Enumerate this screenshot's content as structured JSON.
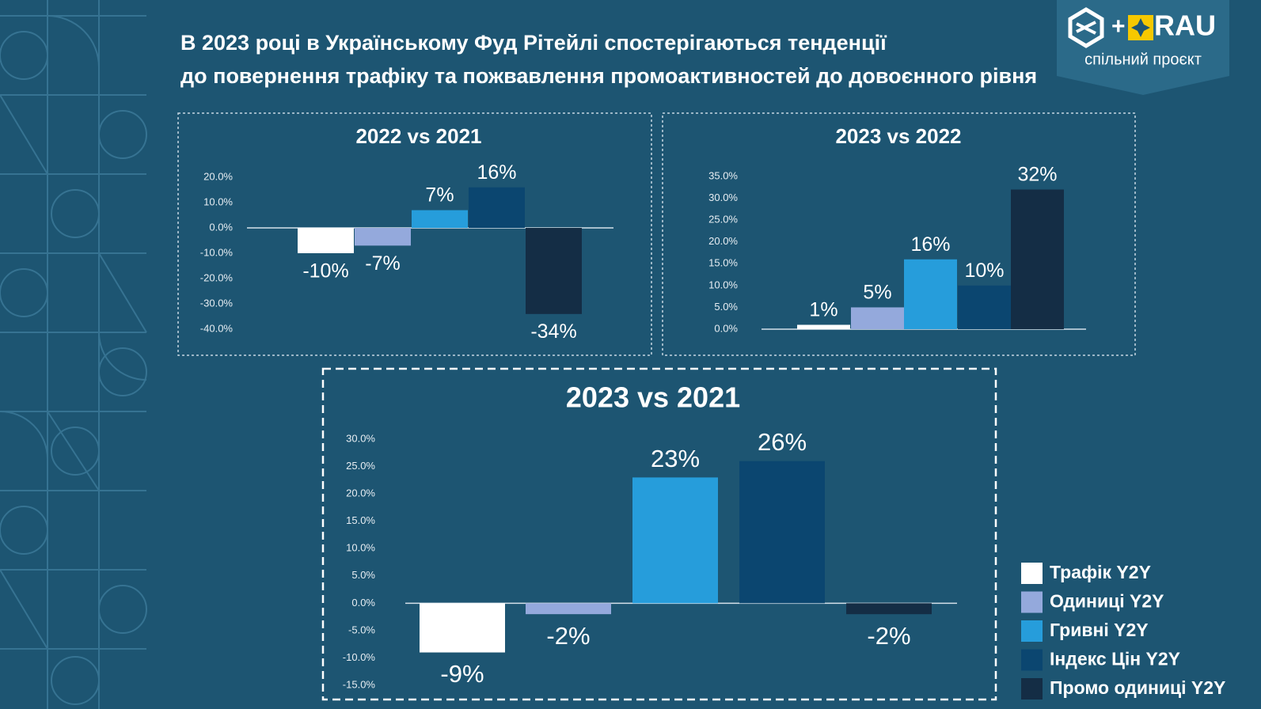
{
  "header": {
    "title_lines": [
      "В 2023 році в Українському Фуд Рітейлі спостерігаються тенденції",
      "до повернення трафіку та пожвавлення промоактивностей до довоєнного рівня"
    ]
  },
  "logo": {
    "plus": "+",
    "brand": "RAU",
    "caption": "спільний проєкт"
  },
  "legend": {
    "items": [
      {
        "name": "Трафік Y2Y",
        "color": "#ffffff"
      },
      {
        "name": "Одиниці Y2Y",
        "color": "#94a9dc"
      },
      {
        "name": "Гривні Y2Y",
        "color": "#269ddb"
      },
      {
        "name": "Індекс Цін Y2Y",
        "color": "#0b4670"
      },
      {
        "name": "Промо одиниці Y2Y",
        "color": "#142d45"
      }
    ]
  },
  "chart_data": [
    {
      "type": "bar",
      "title": "2022 vs 2021",
      "values": [
        -10,
        -7,
        7,
        16,
        -34
      ],
      "value_labels": [
        "-10%",
        "-7%",
        "7%",
        "16%",
        "-34%"
      ],
      "ylim": [
        -40,
        20
      ],
      "yticks": [
        {
          "value": 20,
          "label": "20.0%"
        },
        {
          "value": 10,
          "label": "10.0%"
        },
        {
          "value": 0,
          "label": "0.0%"
        },
        {
          "value": -10,
          "label": "-10.0%"
        },
        {
          "value": -20,
          "label": "-20.0%"
        },
        {
          "value": -30,
          "label": "-30.0%"
        },
        {
          "value": -40,
          "label": "-40.0%"
        }
      ]
    },
    {
      "type": "bar",
      "title": "2023 vs 2022",
      "values": [
        1,
        5,
        16,
        10,
        32
      ],
      "value_labels": [
        "1%",
        "5%",
        "16%",
        "10%",
        "32%"
      ],
      "ylim": [
        0,
        35
      ],
      "yticks": [
        {
          "value": 35,
          "label": "35.0%"
        },
        {
          "value": 30,
          "label": "30.0%"
        },
        {
          "value": 25,
          "label": "25.0%"
        },
        {
          "value": 20,
          "label": "20.0%"
        },
        {
          "value": 15,
          "label": "15.0%"
        },
        {
          "value": 10,
          "label": "10.0%"
        },
        {
          "value": 5,
          "label": "5.0%"
        },
        {
          "value": 0,
          "label": "0.0%"
        }
      ]
    },
    {
      "type": "bar",
      "title": "2023 vs 2021",
      "values": [
        -9,
        -2,
        23,
        26,
        -2
      ],
      "value_labels": [
        "-9%",
        "-2%",
        "23%",
        "26%",
        "-2%"
      ],
      "ylim": [
        -15,
        30
      ],
      "yticks": [
        {
          "value": 30,
          "label": "30.0%"
        },
        {
          "value": 25,
          "label": "25.0%"
        },
        {
          "value": 20,
          "label": "20.0%"
        },
        {
          "value": 15,
          "label": "15.0%"
        },
        {
          "value": 10,
          "label": "10.0%"
        },
        {
          "value": 5,
          "label": "5.0%"
        },
        {
          "value": 0,
          "label": "0.0%"
        },
        {
          "value": -5,
          "label": "-5.0%"
        },
        {
          "value": -10,
          "label": "-10.0%"
        },
        {
          "value": -15,
          "label": "-15.0%"
        }
      ]
    }
  ]
}
